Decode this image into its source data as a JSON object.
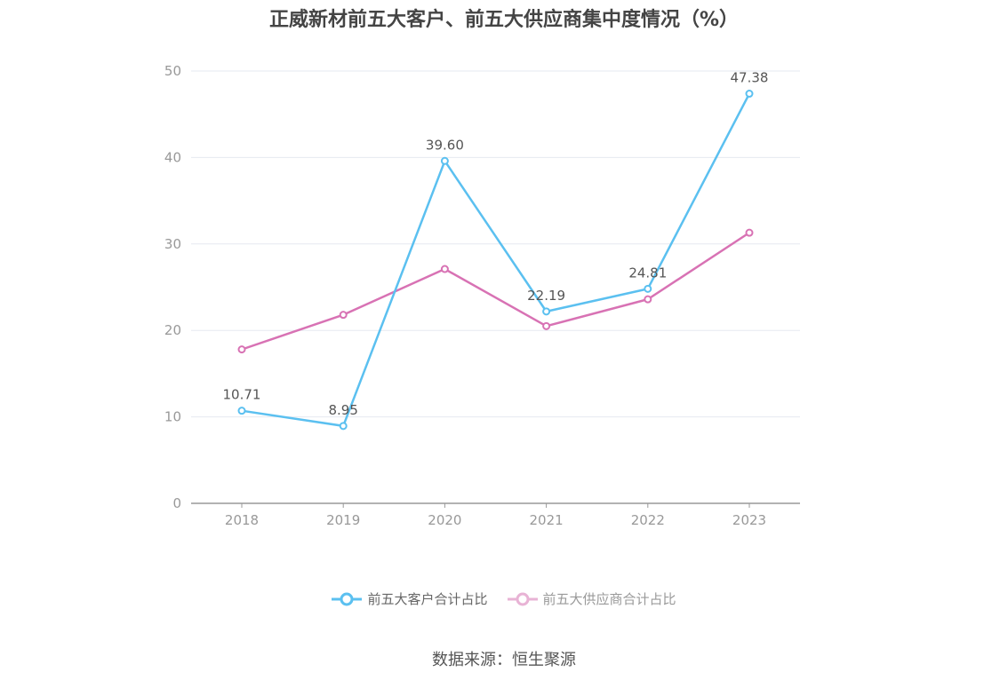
{
  "chart_data": {
    "type": "line",
    "title": "正威新材前五大客户、前五大供应商集中度情况（%）",
    "categories": [
      "2018",
      "2019",
      "2020",
      "2021",
      "2022",
      "2023"
    ],
    "series": [
      {
        "name": "前五大客户合计占比",
        "values": [
          10.71,
          8.95,
          39.6,
          22.19,
          24.81,
          47.38
        ],
        "color": "#5BC0F0",
        "show_labels": true
      },
      {
        "name": "前五大供应商合计占比",
        "values": [
          17.8,
          21.8,
          27.1,
          20.5,
          23.6,
          31.3
        ],
        "color": "#D872B4",
        "show_labels": false
      }
    ],
    "ylim": [
      0,
      50
    ],
    "yticks": [
      0,
      10,
      20,
      30,
      40,
      50
    ],
    "grid": true,
    "legend_position": "bottom"
  },
  "source": "数据来源：恒生聚源",
  "colors": {
    "axis": "#999999",
    "grid": "#E6E9F0"
  }
}
